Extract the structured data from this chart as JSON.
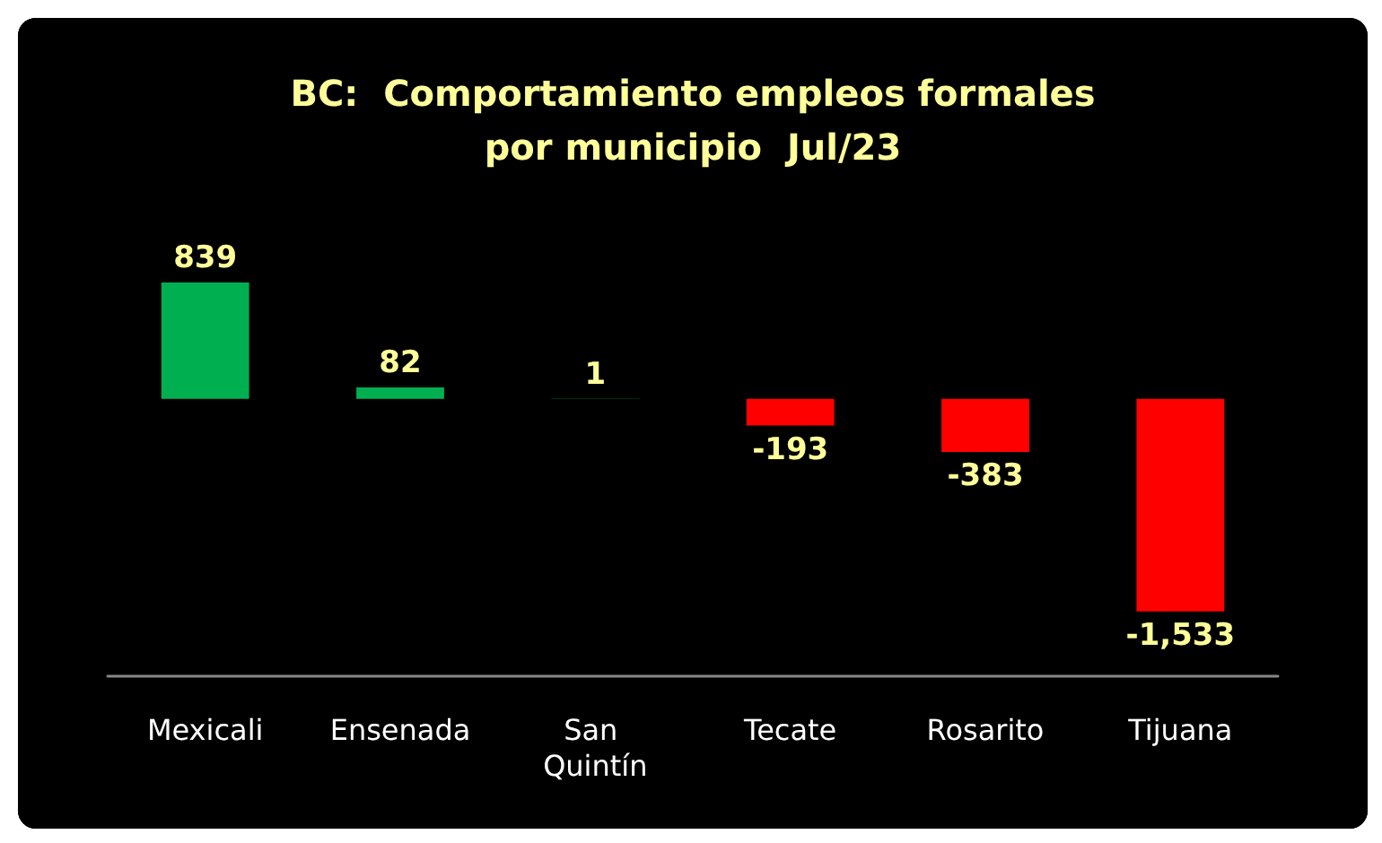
{
  "chart_data": {
    "type": "bar",
    "title": "BC:  Comportamiento empleos formales\npor municipio  Jul/23",
    "categories": [
      "Mexicali",
      "Ensenada",
      "San Quintín",
      "Tecate",
      "Rosarito",
      "Tijuana"
    ],
    "values": [
      839,
      82,
      1,
      -193,
      -383,
      -1533
    ],
    "colors": [
      "#00b050",
      "#00b050",
      "#00b050",
      "#ff0000",
      "#ff0000",
      "#ff0000"
    ],
    "value_labels": [
      "839",
      "82",
      "1",
      "-193",
      "-383",
      "-1,533"
    ]
  }
}
